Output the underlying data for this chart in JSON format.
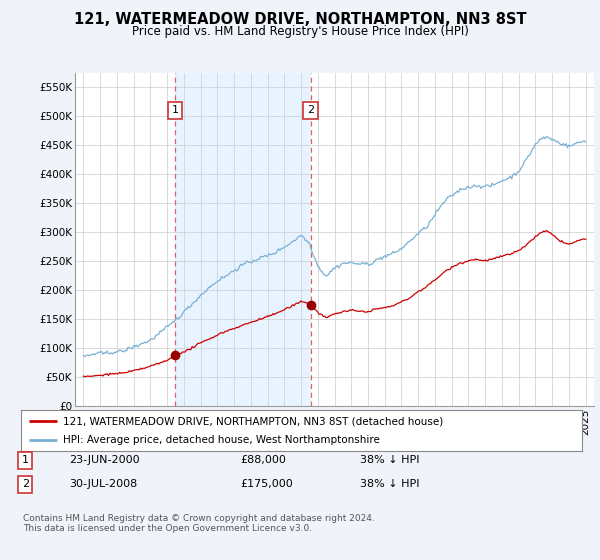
{
  "title": "121, WATERMEADOW DRIVE, NORTHAMPTON, NN3 8ST",
  "subtitle": "Price paid vs. HM Land Registry's House Price Index (HPI)",
  "legend_line1": "121, WATERMEADOW DRIVE, NORTHAMPTON, NN3 8ST (detached house)",
  "legend_line2": "HPI: Average price, detached house, West Northamptonshire",
  "annotation1_label": "1",
  "annotation1_date": "23-JUN-2000",
  "annotation1_price": "£88,000",
  "annotation1_hpi": "38% ↓ HPI",
  "annotation1_year": 2000.47,
  "annotation1_value": 88000,
  "annotation2_label": "2",
  "annotation2_date": "30-JUL-2008",
  "annotation2_price": "£175,000",
  "annotation2_hpi": "38% ↓ HPI",
  "annotation2_year": 2008.57,
  "annotation2_value": 175000,
  "price_color": "#cc0000",
  "hpi_color": "#7ab0d4",
  "vline_color": "#e06060",
  "dot_color": "#990000",
  "shade_color": "#ddeeff",
  "ylim": [
    0,
    575000
  ],
  "yticks": [
    0,
    50000,
    100000,
    150000,
    200000,
    250000,
    300000,
    350000,
    400000,
    450000,
    500000,
    550000
  ],
  "footer": "Contains HM Land Registry data © Crown copyright and database right 2024.\nThis data is licensed under the Open Government Licence v3.0.",
  "bg_color": "#f0f4fa",
  "plot_bg_color": "#ffffff"
}
